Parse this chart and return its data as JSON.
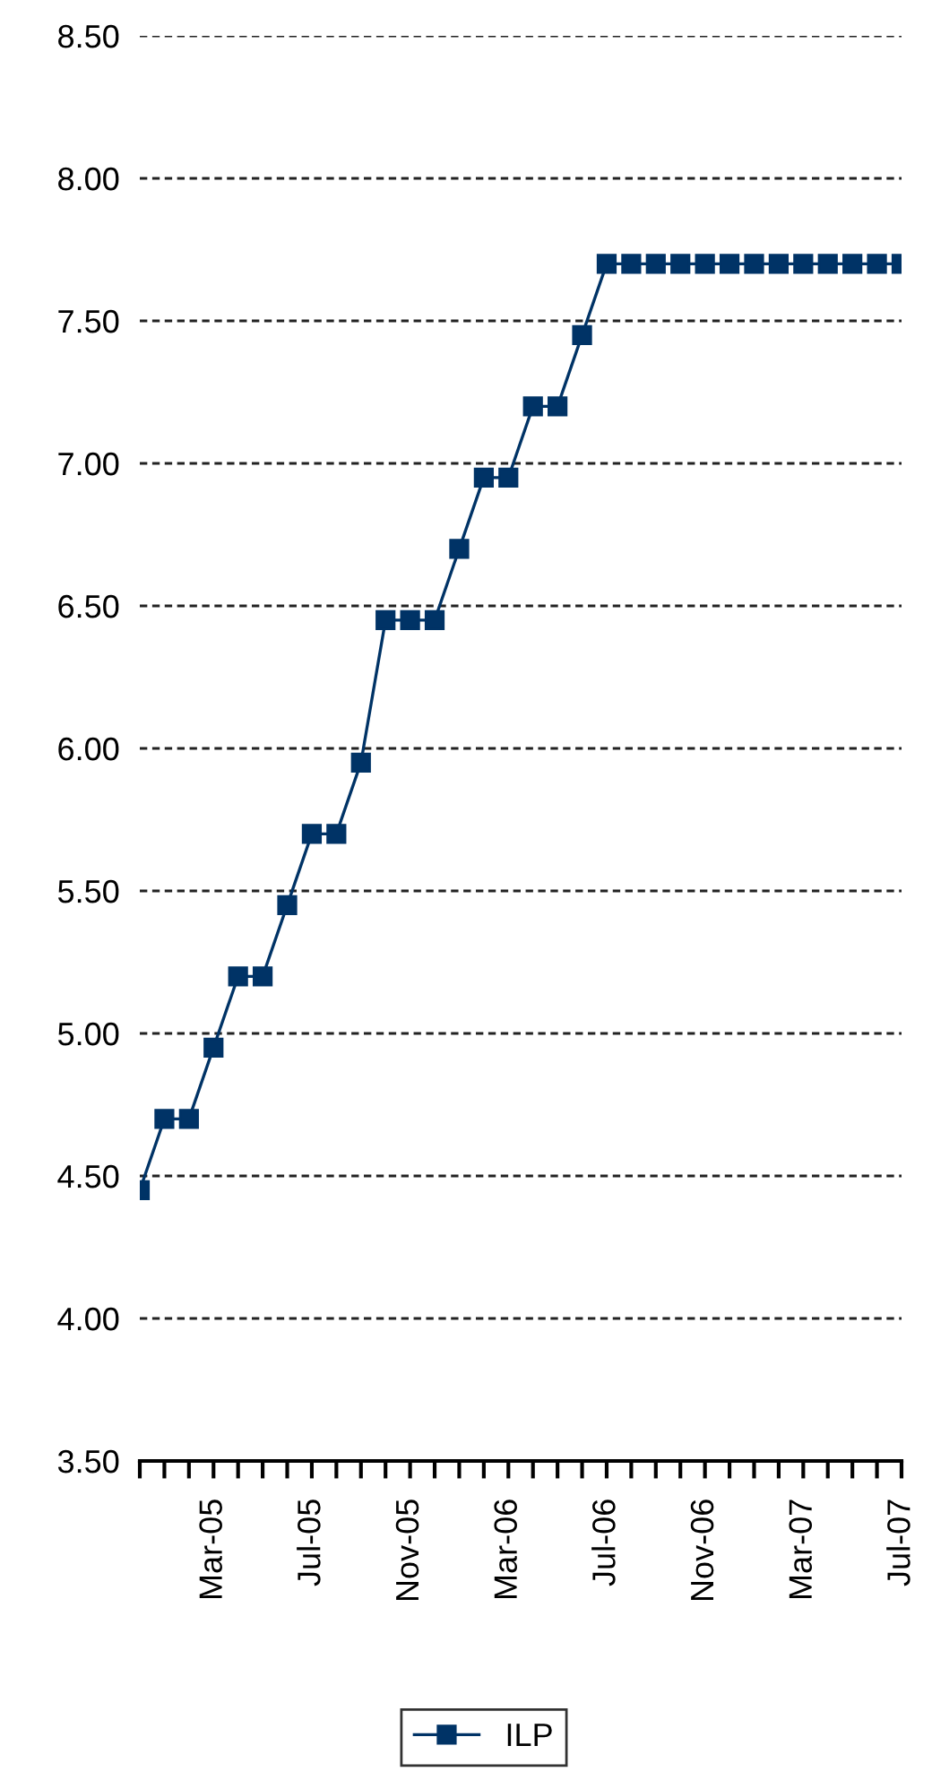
{
  "chart_data": {
    "type": "line",
    "categories": [
      null,
      null,
      null,
      "Mar-05",
      null,
      null,
      null,
      "Jul-05",
      null,
      null,
      null,
      "Nov-05",
      null,
      null,
      null,
      "Mar-06",
      null,
      null,
      null,
      "Jul-06",
      null,
      null,
      null,
      "Nov-06",
      null,
      null,
      null,
      "Mar-07",
      null,
      null,
      null,
      "Jul-07"
    ],
    "series": [
      {
        "name": "ILP",
        "color": "#003366",
        "values": [
          4.45,
          4.7,
          4.7,
          4.95,
          5.2,
          5.2,
          5.45,
          5.7,
          5.7,
          5.95,
          6.45,
          6.45,
          6.45,
          6.7,
          6.95,
          6.95,
          7.2,
          7.2,
          7.45,
          7.7,
          7.7,
          7.7,
          7.7,
          7.7,
          7.7,
          7.7,
          7.7,
          7.7,
          7.7,
          7.7,
          7.7,
          7.7
        ]
      }
    ],
    "ylim": [
      3.5,
      8.5
    ],
    "yticks": [
      {
        "value": 3.5,
        "label": "3.50"
      },
      {
        "value": 4.0,
        "label": "4.00"
      },
      {
        "value": 4.5,
        "label": "4.50"
      },
      {
        "value": 5.0,
        "label": "5.00"
      },
      {
        "value": 5.5,
        "label": "5.50"
      },
      {
        "value": 6.0,
        "label": "6.00"
      },
      {
        "value": 6.5,
        "label": "6.50"
      },
      {
        "value": 7.0,
        "label": "7.00"
      },
      {
        "value": 7.5,
        "label": "7.50"
      },
      {
        "value": 8.0,
        "label": "8.00"
      },
      {
        "value": 8.5,
        "label": "8.50"
      }
    ],
    "grid": "y",
    "legend": "bottom",
    "marker": "square",
    "line_style": "solid"
  }
}
